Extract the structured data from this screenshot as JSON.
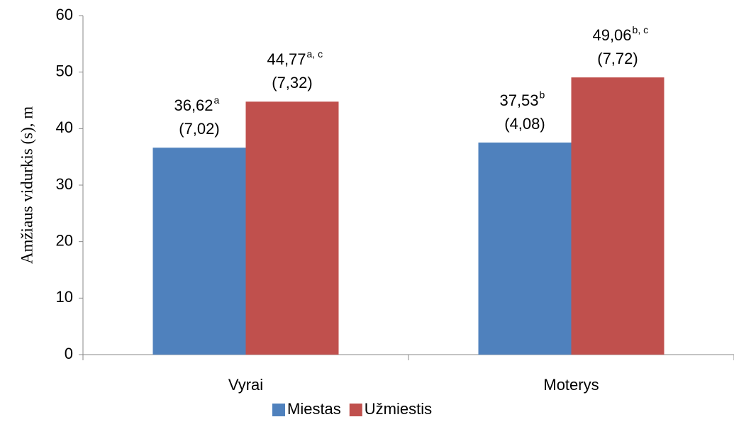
{
  "chart_data": {
    "type": "bar",
    "y_label": "Amžiaus vidurkis (s), m",
    "categories": [
      "Vyrai",
      "Moterys"
    ],
    "series": [
      {
        "name": "Miestas",
        "color": "#4f81bd",
        "values": [
          36.62,
          37.53
        ],
        "value_labels": [
          "36,62",
          "37,53"
        ],
        "superscripts": [
          "a",
          "b"
        ],
        "sd_values": [
          7.02,
          4.08
        ],
        "sd_labels": [
          "(7,02)",
          "(4,08)"
        ]
      },
      {
        "name": "Užmiestis",
        "color": "#c0504d",
        "values": [
          44.77,
          49.06
        ],
        "value_labels": [
          "44,77",
          "49,06"
        ],
        "superscripts": [
          "a, c",
          "b, c"
        ],
        "sd_values": [
          7.32,
          7.72
        ],
        "sd_labels": [
          "(7,32)",
          "(7,72)"
        ]
      }
    ],
    "ylim": [
      0,
      60
    ],
    "yticks": [
      0,
      10,
      20,
      30,
      40,
      50,
      60
    ],
    "grid": false,
    "legend": "bottom"
  }
}
